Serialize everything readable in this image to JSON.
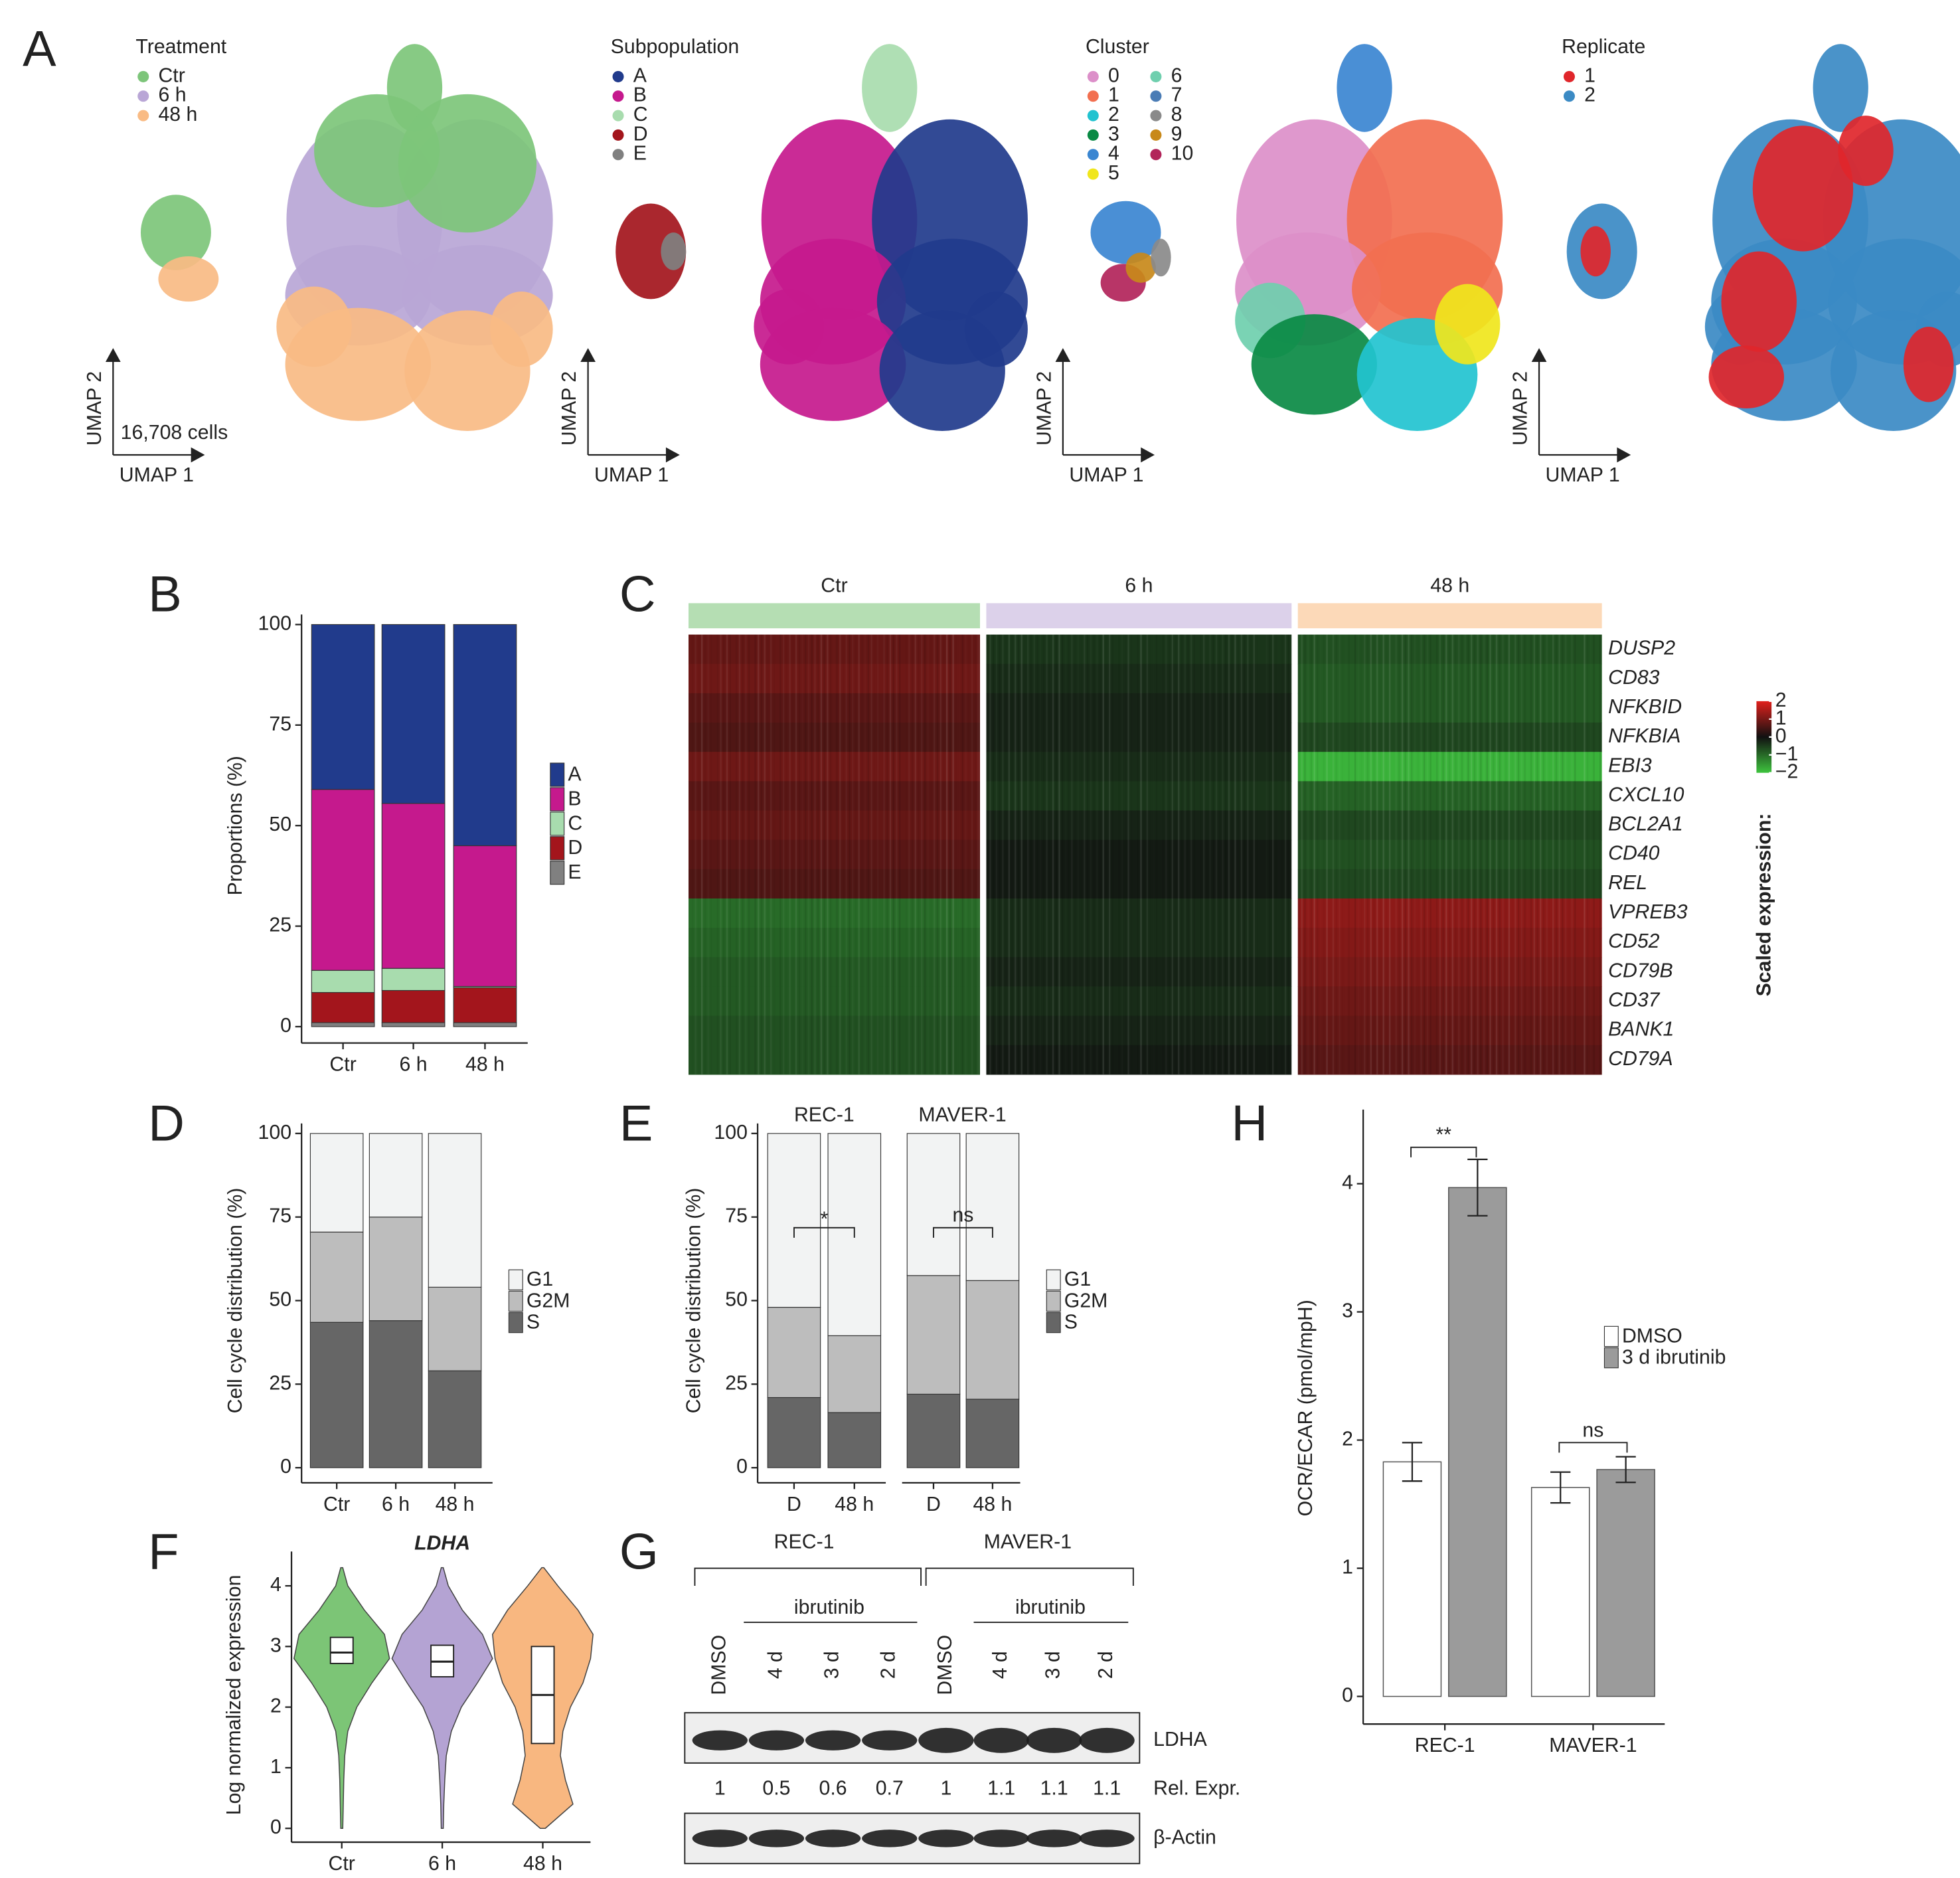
{
  "panel_labels": [
    "A",
    "B",
    "C",
    "D",
    "E",
    "F",
    "G",
    "H"
  ],
  "umap": {
    "cells_label": "16,708 cells",
    "axis_x": "UMAP 1",
    "axis_y": "UMAP 2",
    "legends": [
      {
        "title": "Treatment",
        "items": [
          {
            "name": "Ctr",
            "color": "#7dc57a"
          },
          {
            "name": "6 h",
            "color": "#b9a6d6"
          },
          {
            "name": "48 h",
            "color": "#f9bb84"
          }
        ]
      },
      {
        "title": "Subpopulation",
        "items": [
          {
            "name": "A",
            "color": "#213b8c"
          },
          {
            "name": "B",
            "color": "#c5198d"
          },
          {
            "name": "C",
            "color": "#a8dcae"
          },
          {
            "name": "D",
            "color": "#a3151c"
          },
          {
            "name": "E",
            "color": "#808080"
          }
        ]
      },
      {
        "title": "Cluster",
        "items": [
          {
            "name": "0",
            "color": "#dc8fc9"
          },
          {
            "name": "1",
            "color": "#f26f50"
          },
          {
            "name": "2",
            "color": "#22c3d0"
          },
          {
            "name": "3",
            "color": "#0a8a44"
          },
          {
            "name": "4",
            "color": "#3b86d1"
          },
          {
            "name": "5",
            "color": "#f0e61c"
          },
          {
            "name": "6",
            "color": "#6fcfae"
          },
          {
            "name": "7",
            "color": "#4a7cb5"
          },
          {
            "name": "8",
            "color": "#8a8a8a"
          },
          {
            "name": "9",
            "color": "#c8891a"
          },
          {
            "name": "10",
            "color": "#b2245a"
          }
        ]
      },
      {
        "title": "Replicate",
        "items": [
          {
            "name": "1",
            "color": "#e0262b"
          },
          {
            "name": "2",
            "color": "#3b8ac4"
          }
        ]
      }
    ]
  },
  "chart_data": [
    {
      "type": "bar",
      "stacked": true,
      "ylabel": "Proportions (%)",
      "categories": [
        "Ctr",
        "6 h",
        "48 h"
      ],
      "ylim": [
        0,
        100
      ],
      "yticks": [
        0,
        25,
        50,
        75,
        100
      ],
      "series": [
        {
          "name": "A",
          "color": "#213b8c",
          "values": [
            41,
            44.5,
            55
          ]
        },
        {
          "name": "B",
          "color": "#c5198d",
          "values": [
            45,
            41,
            35
          ]
        },
        {
          "name": "C",
          "color": "#a8dcae",
          "values": [
            5.5,
            5.5,
            0.3
          ]
        },
        {
          "name": "D",
          "color": "#a3151c",
          "values": [
            7.5,
            8,
            8.7
          ]
        },
        {
          "name": "E",
          "color": "#808080",
          "values": [
            1,
            1,
            1
          ]
        }
      ]
    },
    {
      "type": "heatmap",
      "title": "Scaled expression:",
      "groups": [
        "Ctr",
        "6 h",
        "48 h"
      ],
      "group_colors": [
        "#b5deb3",
        "#dcd1ea",
        "#fcd9b8"
      ],
      "genes": [
        "DUSP2",
        "CD83",
        "NFKBID",
        "NFKBIA",
        "EBI3",
        "CXCL10",
        "BCL2A1",
        "CD40",
        "REL",
        "VPREB3",
        "CD52",
        "CD79B",
        "CD37",
        "BANK1",
        "CD79A"
      ],
      "values": [
        [
          0.8,
          -0.4,
          -0.7
        ],
        [
          0.9,
          -0.3,
          -0.8
        ],
        [
          0.7,
          -0.2,
          -0.8
        ],
        [
          0.6,
          -0.2,
          -0.6
        ],
        [
          0.9,
          -0.3,
          -1.8
        ],
        [
          0.7,
          -0.4,
          -0.9
        ],
        [
          0.8,
          -0.2,
          -0.6
        ],
        [
          0.7,
          -0.1,
          -0.7
        ],
        [
          0.6,
          -0.1,
          -0.6
        ],
        [
          -1.0,
          -0.3,
          1.2
        ],
        [
          -0.9,
          -0.3,
          1.1
        ],
        [
          -0.8,
          -0.2,
          1.0
        ],
        [
          -0.8,
          -0.3,
          0.9
        ],
        [
          -0.7,
          -0.2,
          0.8
        ],
        [
          -0.7,
          -0.1,
          0.7
        ]
      ],
      "clim": [
        -2,
        2
      ],
      "cticks": [
        2,
        1,
        0,
        {
          "value": -1,
          "label": "−1"
        },
        {
          "value": -2,
          "label": "−2"
        }
      ],
      "colors": {
        "low": "#3ec43e",
        "mid": "#111111",
        "high": "#e0201c"
      }
    },
    {
      "type": "bar",
      "stacked": true,
      "ylabel": "Cell cycle distribution (%)",
      "categories": [
        "Ctr",
        "6 h",
        "48 h"
      ],
      "ylim": [
        0,
        100
      ],
      "yticks": [
        0,
        25,
        50,
        75,
        100
      ],
      "series": [
        {
          "name": "G1",
          "color": "#f2f3f3",
          "values": [
            29.5,
            25,
            46
          ]
        },
        {
          "name": "G2M",
          "color": "#bdbdbd",
          "values": [
            27,
            31,
            25
          ]
        },
        {
          "name": "S",
          "color": "#666666",
          "values": [
            43.5,
            44,
            29
          ]
        }
      ]
    },
    {
      "type": "bar",
      "stacked": true,
      "ylabel": "Cell cycle distribution (%)",
      "facets": [
        "REC-1",
        "MAVER-1"
      ],
      "categories": [
        "D",
        "48 h",
        "D",
        "48 h"
      ],
      "ylim": [
        0,
        100
      ],
      "yticks": [
        0,
        25,
        50,
        75,
        100
      ],
      "series": [
        {
          "name": "G1",
          "color": "#f2f3f3",
          "values": [
            52,
            60.5,
            42.5,
            44
          ]
        },
        {
          "name": "G2M",
          "color": "#bdbdbd",
          "values": [
            27,
            23,
            35.5,
            35.5
          ]
        },
        {
          "name": "S",
          "color": "#666666",
          "values": [
            21,
            16.5,
            22,
            20.5
          ]
        }
      ],
      "annotations": [
        "*",
        "ns"
      ]
    },
    {
      "type": "violin",
      "title": "LDHA",
      "ylabel": "Log normalized expression",
      "categories": [
        "Ctr",
        "6 h",
        "48 h"
      ],
      "colors": [
        "#7cc576",
        "#b4a3d3",
        "#f8b780"
      ],
      "ylim": [
        0,
        4.4
      ],
      "yticks": [
        0,
        1,
        2,
        3,
        4
      ],
      "density_y": [
        0,
        0.4,
        0.8,
        1.2,
        1.6,
        2.0,
        2.4,
        2.8,
        3.2,
        3.6,
        4.0,
        4.3
      ],
      "density": [
        [
          0.02,
          0.03,
          0.04,
          0.06,
          0.12,
          0.3,
          0.6,
          0.95,
          0.85,
          0.45,
          0.12,
          0.02
        ],
        [
          0.02,
          0.03,
          0.05,
          0.08,
          0.18,
          0.38,
          0.7,
          1,
          0.8,
          0.4,
          0.12,
          0.02
        ],
        [
          0.05,
          0.6,
          0.45,
          0.35,
          0.4,
          0.55,
          0.8,
          0.95,
          1,
          0.7,
          0.3,
          0.02
        ]
      ],
      "median": [
        2.9,
        2.75,
        2.2
      ],
      "q1": [
        2.72,
        2.5,
        1.4
      ],
      "q3": [
        3.15,
        3.02,
        3.0
      ]
    },
    {
      "type": "bar",
      "ylabel": "OCR/ECAR (pmol/mpH)",
      "categories": [
        "REC-1",
        "MAVER-1"
      ],
      "ylim": [
        0,
        4.5
      ],
      "yticks": [
        0,
        1,
        2,
        3,
        4
      ],
      "series": [
        {
          "name": "DMSO",
          "color": "#ffffff",
          "values": [
            1.83,
            1.63
          ],
          "errors": [
            0.15,
            0.12
          ]
        },
        {
          "name": "3 d ibrutinib",
          "color": "#9b9b9b",
          "values": [
            3.97,
            1.77
          ],
          "errors": [
            0.22,
            0.1
          ]
        }
      ],
      "annotations": [
        "**",
        "ns"
      ]
    }
  ],
  "blot": {
    "cell_lines": [
      {
        "name": "REC-1",
        "treatment": "ibrutinib"
      },
      {
        "name": "MAVER-1",
        "treatment": "ibrutinib"
      }
    ],
    "lanes": [
      "DMSO",
      "4 d",
      "3 d",
      "2 d",
      "DMSO",
      "4 d",
      "3 d",
      "2 d"
    ],
    "rel_expr": [
      1,
      0.5,
      0.6,
      0.7,
      1,
      1.1,
      1.1,
      1.1
    ],
    "rel_expr_label": "Rel. Expr.",
    "proteins": [
      "LDHA",
      "β-Actin"
    ]
  }
}
